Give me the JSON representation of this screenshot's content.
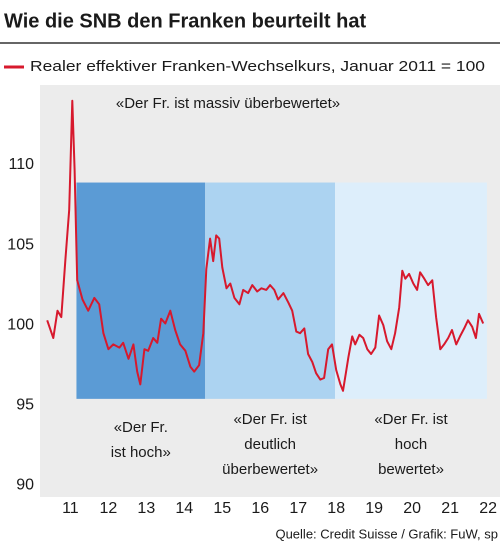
{
  "chart_data": {
    "type": "line",
    "title": "Wie die SNB den Franken beurteilt hat",
    "source": "Quelle: Credit Suisse / Grafik: FuW, sp",
    "annotation": "«Der Fr. ist massiv überbewertet»",
    "xlim": [
      2010.7,
      2022.55
    ],
    "ylim": [
      89.4,
      114.8
    ],
    "xticks": [
      {
        "value": 2011.5,
        "label": "11"
      },
      {
        "value": 2012.5,
        "label": "12"
      },
      {
        "value": 2013.5,
        "label": "13"
      },
      {
        "value": 2014.5,
        "label": "14"
      },
      {
        "value": 2015.5,
        "label": "15"
      },
      {
        "value": 2016.5,
        "label": "16"
      },
      {
        "value": 2017.5,
        "label": "17"
      },
      {
        "value": 2018.5,
        "label": "18"
      },
      {
        "value": 2019.5,
        "label": "19"
      },
      {
        "value": 2020.5,
        "label": "20"
      },
      {
        "value": 2021.5,
        "label": "21"
      },
      {
        "value": 2022.5,
        "label": "22"
      }
    ],
    "yticks": [
      90,
      95,
      100,
      105,
      110
    ],
    "regions": [
      {
        "start": 2011.66,
        "end": 2015.05,
        "bottom": 95.4,
        "top": 108.9,
        "color": "#5b9bd5",
        "label": [
          "«Der Fr.",
          "ist hoch»"
        ]
      },
      {
        "start": 2015.05,
        "end": 2018.47,
        "bottom": 95.4,
        "top": 108.9,
        "color": "#acd3f1",
        "label": [
          "«Der Fr. ist",
          "deutlich",
          "überbewertet»"
        ]
      },
      {
        "start": 2018.47,
        "end": 2022.47,
        "bottom": 95.4,
        "top": 108.9,
        "color": "#ddeefb",
        "label": [
          "«Der Fr. ist",
          "hoch",
          "bewertet»"
        ]
      }
    ],
    "series": [
      {
        "name": "Realer effektiver Franken-Wechselkurs, Januar 2011 = 100",
        "color": "#d7192d",
        "x": [
          2010.89,
          2011.05,
          2011.16,
          2011.26,
          2011.37,
          2011.47,
          2011.55,
          2011.61,
          2011.68,
          2011.82,
          2011.97,
          2012.13,
          2012.26,
          2012.37,
          2012.5,
          2012.63,
          2012.79,
          2012.89,
          2013.03,
          2013.16,
          2013.26,
          2013.34,
          2013.45,
          2013.55,
          2013.68,
          2013.79,
          2013.89,
          2014.0,
          2014.13,
          2014.26,
          2014.39,
          2014.53,
          2014.66,
          2014.76,
          2014.89,
          2015.0,
          2015.08,
          2015.18,
          2015.26,
          2015.34,
          2015.42,
          2015.5,
          2015.61,
          2015.71,
          2015.82,
          2015.95,
          2016.05,
          2016.18,
          2016.29,
          2016.42,
          2016.53,
          2016.66,
          2016.76,
          2016.87,
          2016.97,
          2017.11,
          2017.24,
          2017.34,
          2017.45,
          2017.55,
          2017.66,
          2017.76,
          2017.87,
          2017.97,
          2018.08,
          2018.18,
          2018.29,
          2018.39,
          2018.5,
          2018.61,
          2018.68,
          2018.76,
          2018.82,
          2018.92,
          2019.0,
          2019.11,
          2019.21,
          2019.32,
          2019.42,
          2019.53,
          2019.63,
          2019.74,
          2019.84,
          2019.95,
          2020.05,
          2020.16,
          2020.24,
          2020.32,
          2020.42,
          2020.53,
          2020.63,
          2020.71,
          2020.82,
          2020.92,
          2021.03,
          2021.13,
          2021.24,
          2021.34,
          2021.45,
          2021.55,
          2021.66,
          2021.76,
          2021.87,
          2021.97,
          2022.08,
          2022.18,
          2022.26,
          2022.37
        ],
        "values": [
          100.3,
          99.2,
          100.9,
          100.5,
          104.1,
          107.2,
          114.0,
          109.7,
          102.8,
          101.6,
          100.9,
          101.7,
          101.3,
          99.5,
          98.5,
          98.8,
          98.6,
          98.9,
          97.9,
          98.8,
          97.1,
          96.3,
          98.5,
          98.4,
          99.2,
          98.9,
          100.4,
          100.1,
          100.9,
          99.7,
          98.8,
          98.4,
          97.4,
          97.1,
          97.5,
          99.5,
          103.5,
          105.4,
          104.0,
          105.6,
          105.4,
          103.6,
          102.3,
          102.6,
          101.7,
          101.3,
          102.2,
          102.0,
          102.5,
          102.1,
          102.3,
          102.2,
          102.5,
          102.2,
          101.6,
          102.0,
          101.4,
          100.9,
          99.6,
          99.5,
          99.8,
          98.2,
          97.7,
          97.0,
          96.6,
          96.7,
          98.5,
          98.8,
          97.2,
          96.3,
          95.9,
          97.1,
          98.0,
          99.3,
          98.8,
          99.4,
          99.2,
          98.5,
          98.2,
          98.6,
          100.6,
          100.0,
          99.0,
          98.5,
          99.5,
          101.1,
          103.4,
          102.9,
          103.2,
          102.6,
          102.2,
          103.3,
          102.9,
          102.5,
          102.8,
          100.5,
          98.5,
          98.8,
          99.2,
          99.7,
          98.8,
          99.3,
          99.8,
          100.3,
          99.9,
          99.2,
          100.7,
          100.1
        ]
      }
    ]
  }
}
